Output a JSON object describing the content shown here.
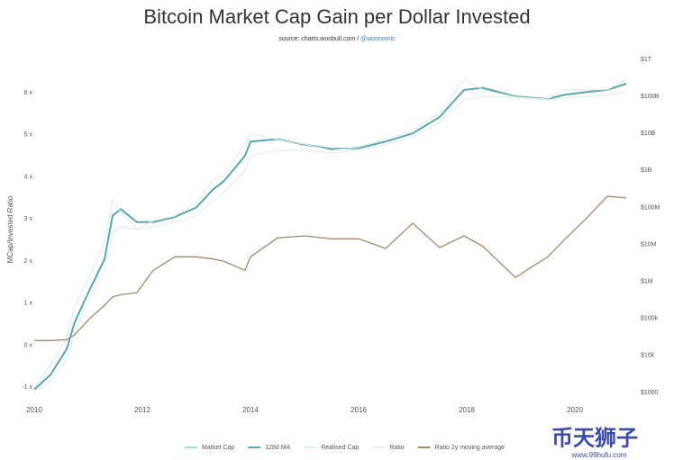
{
  "chart_data": {
    "type": "line",
    "title": "Bitcoin Market Cap Gain per Dollar Invested",
    "subtitle": "source: charts.woobull.com / ",
    "subtitle_link": "@woonomic",
    "y_label": "MCap/Invested Ratio",
    "watermark": "币天狮子",
    "watermark_url": "www.99hufu.com",
    "x": [
      2010.0,
      2010.3,
      2010.6,
      2010.75,
      2011.0,
      2011.3,
      2011.45,
      2011.6,
      2011.9,
      2012.2,
      2012.6,
      2013.0,
      2013.3,
      2013.5,
      2013.9,
      2014.0,
      2014.5,
      2015.0,
      2015.5,
      2016.0,
      2016.5,
      2017.0,
      2017.5,
      2017.95,
      2018.3,
      2018.9,
      2019.5,
      2019.8,
      2020.2,
      2020.6,
      2020.95
    ],
    "xlim": [
      2010,
      2021
    ],
    "xticks": [
      2010,
      2012,
      2014,
      2016,
      2018,
      2020
    ],
    "ylim": [
      -1.21,
      6.88
    ],
    "yticks": [
      {
        "value": -1,
        "label": "-1 x"
      },
      {
        "value": 0,
        "label": "0 x"
      },
      {
        "value": 1,
        "label": "1 x"
      },
      {
        "value": 2,
        "label": "2 x"
      },
      {
        "value": 3,
        "label": "3 x"
      },
      {
        "value": 4,
        "label": "4 x"
      },
      {
        "value": 5,
        "label": "5 x"
      },
      {
        "value": 6,
        "label": "6 x"
      }
    ],
    "y2lim": [
      800,
      1250000000000
    ],
    "y2scale": "log",
    "y2ticks": [
      {
        "value": 1000,
        "label": "$1000"
      },
      {
        "value": 10000,
        "label": "$10k"
      },
      {
        "value": 100000,
        "label": "$100k"
      },
      {
        "value": 1000000,
        "label": "$1M"
      },
      {
        "value": 10000000,
        "label": "$10M"
      },
      {
        "value": 100000000,
        "label": "$100M"
      },
      {
        "value": 1000000000,
        "label": "$1B"
      },
      {
        "value": 10000000000,
        "label": "$10B"
      },
      {
        "value": 100000000000,
        "label": "$100B"
      },
      {
        "value": 1000000000000,
        "label": "$1T"
      }
    ],
    "grid": false,
    "legend": "bottom",
    "series": [
      {
        "name": "Market Cap",
        "color": "#a9d6d6",
        "width": 1,
        "axis": "y2",
        "values": [
          1380,
          5600,
          30000,
          214000,
          1150000,
          11000000,
          160000000,
          78000000,
          25000000,
          44000000,
          59000000,
          135000000,
          550000000,
          720000000,
          5200000000,
          10000000000,
          6800000000,
          5200000000,
          3500000000,
          4400000000,
          6800000000,
          12000000000,
          36000000000,
          290000000000,
          150000000000,
          95000000000,
          85000000000,
          150000000000,
          150000000000,
          150000000000,
          290000000000
        ]
      },
      {
        "name": "128d MA",
        "color": "#5aa5b0",
        "width": 2,
        "axis": "y2",
        "values": [
          1200,
          3000,
          15000,
          80000,
          500000,
          4000000,
          60000000,
          90000000,
          40000000,
          40000000,
          55000000,
          100000000,
          300000000,
          500000000,
          2500000000,
          6000000000,
          7000000000,
          5000000000,
          3800000000,
          4000000000,
          6000000000,
          10000000000,
          28000000000,
          150000000000,
          170000000000,
          100000000000,
          85000000000,
          110000000000,
          130000000000,
          150000000000,
          220000000000
        ]
      },
      {
        "name": "Realised Cap",
        "color": "#dcecec",
        "width": 1,
        "axis": "y2",
        "values": [
          1000,
          2000,
          8000,
          40000,
          300000,
          2000000,
          20000000,
          30000000,
          25000000,
          30000000,
          40000000,
          60000000,
          150000000,
          250000000,
          1000000000,
          2500000000,
          3500000000,
          3500000000,
          3000000000,
          3500000000,
          5000000000,
          8000000000,
          20000000000,
          80000000000,
          100000000000,
          95000000000,
          80000000000,
          90000000000,
          100000000000,
          110000000000,
          130000000000
        ]
      },
      {
        "name": "Ratio",
        "color": "#e4f1f1",
        "width": 1,
        "values": [
          -1.0,
          -0.46,
          0.18,
          0.93,
          1.57,
          2.43,
          3.45,
          3.18,
          2.75,
          2.96,
          3.07,
          3.39,
          3.93,
          4.03,
          4.78,
          5.04,
          4.89,
          4.78,
          4.63,
          4.71,
          4.89,
          5.1,
          5.53,
          6.32,
          6.07,
          5.9,
          5.85,
          6.07,
          6.07,
          6.07,
          6.32
        ]
      },
      {
        "name": "Ratio 2y moving average",
        "color": "#a58a6a",
        "width": 1.3,
        "values": [
          0.11,
          0.11,
          0.13,
          0.25,
          0.6,
          0.95,
          1.15,
          1.2,
          1.25,
          1.78,
          2.1,
          2.1,
          2.05,
          2.0,
          1.78,
          2.1,
          2.55,
          2.6,
          2.53,
          2.53,
          2.3,
          2.9,
          2.32,
          2.6,
          2.35,
          1.61,
          2.1,
          2.5,
          3.0,
          3.54,
          3.5
        ]
      }
    ]
  }
}
